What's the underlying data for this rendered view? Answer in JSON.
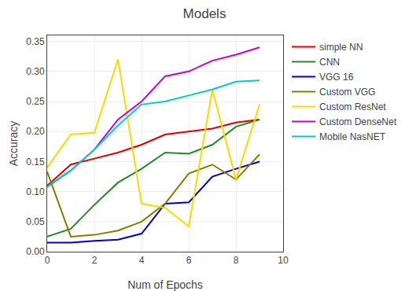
{
  "chart_data": {
    "type": "line",
    "title": "Models",
    "x_label": "Num of Epochs",
    "y_label": "Accuracy",
    "x": [
      0,
      1,
      2,
      3,
      4,
      5,
      6,
      7,
      8,
      9
    ],
    "series": [
      {
        "name": "simple NN",
        "color": "#dd0000",
        "values": [
          0.11,
          0.145,
          0.155,
          0.165,
          0.178,
          0.195,
          0.2,
          0.205,
          0.215,
          0.22
        ]
      },
      {
        "name": "CNN",
        "color": "#228B22",
        "values": [
          0.025,
          0.038,
          0.078,
          0.115,
          0.138,
          0.165,
          0.163,
          0.178,
          0.208,
          0.22
        ]
      },
      {
        "name": "VGG 16",
        "color": "#0000cc",
        "values": [
          0.015,
          0.015,
          0.018,
          0.02,
          0.03,
          0.08,
          0.082,
          0.125,
          0.138,
          0.15
        ]
      },
      {
        "name": "Custom VGG",
        "color": "#808000",
        "values": [
          0.133,
          0.025,
          0.028,
          0.035,
          0.05,
          0.08,
          0.13,
          0.145,
          0.12,
          0.162
        ]
      },
      {
        "name": "Custom ResNet",
        "color": "#FFD700",
        "values": [
          0.14,
          0.195,
          0.198,
          0.32,
          0.08,
          0.073,
          0.042,
          0.27,
          0.12,
          0.245
        ]
      },
      {
        "name": "Custom DenseNet",
        "color": "#cc00cc",
        "values": [
          0.108,
          0.135,
          0.17,
          0.22,
          0.25,
          0.292,
          0.3,
          0.318,
          0.328,
          0.34
        ]
      },
      {
        "name": "Mobile NasNET",
        "color": "#00cccc",
        "values": [
          0.108,
          0.135,
          0.17,
          0.21,
          0.245,
          0.25,
          0.26,
          0.27,
          0.283,
          0.285
        ]
      }
    ],
    "xlim": [
      0,
      10
    ],
    "xticks": [
      0,
      2,
      4,
      6,
      8,
      10
    ],
    "ylim": [
      0,
      0.36
    ],
    "yticks": [
      {
        "value": 0,
        "label": "0.00"
      },
      {
        "value": 0.05,
        "label": "0.05"
      },
      {
        "value": 0.1,
        "label": "0.10"
      },
      {
        "value": 0.15,
        "label": "0.15"
      },
      {
        "value": 0.2,
        "label": "0.20"
      },
      {
        "value": 0.25,
        "label": "0.25"
      },
      {
        "value": 0.3,
        "label": "0.30"
      },
      {
        "value": 0.35,
        "label": "0.35"
      }
    ],
    "grid": true,
    "legend": "right"
  }
}
